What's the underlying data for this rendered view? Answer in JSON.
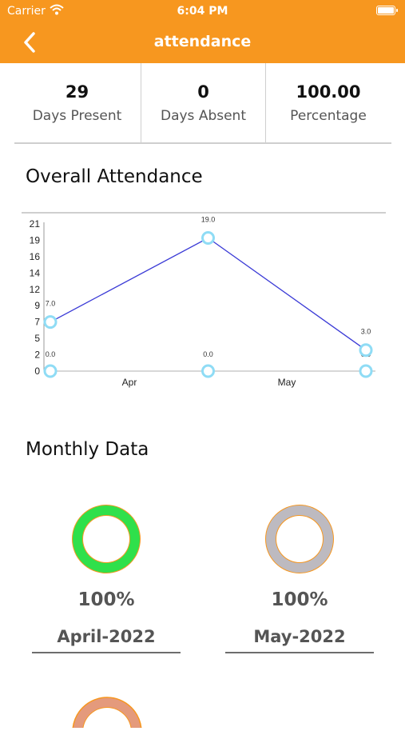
{
  "status_bar": {
    "carrier": "Carrier",
    "time": "6:04 PM"
  },
  "nav": {
    "title": "attendance"
  },
  "stats": [
    {
      "value": "29",
      "label": "Days Present"
    },
    {
      "value": "0",
      "label": "Days Absent"
    },
    {
      "value": "100.00",
      "label": "Percentage"
    }
  ],
  "overall": {
    "title": "Overall Attendance"
  },
  "monthly": {
    "title": "Monthly Data",
    "cards": [
      {
        "percent": "100%",
        "label": "April-2022",
        "ring_color": "#2fe04b",
        "ring_border": "#f7971f"
      },
      {
        "percent": "100%",
        "label": "May-2022",
        "ring_color": "#bdbac0",
        "ring_border": "#f7971f"
      }
    ]
  },
  "chart_data": {
    "type": "line",
    "x_tick_labels": [
      "Apr",
      "May"
    ],
    "y_tick_labels": [
      "0",
      "2",
      "5",
      "7",
      "9",
      "12",
      "14",
      "16",
      "19",
      "21"
    ],
    "ylim": [
      0,
      21
    ],
    "series": [
      {
        "values": [
          7.0,
          19.0,
          3.0
        ],
        "value_labels": [
          "7.0",
          "19.0",
          "3.0"
        ],
        "color": "#3a3ad6"
      },
      {
        "values": [
          0.0,
          0.0,
          0.0
        ],
        "value_labels": "0.0",
        "color": "#b0b0b0"
      }
    ]
  }
}
